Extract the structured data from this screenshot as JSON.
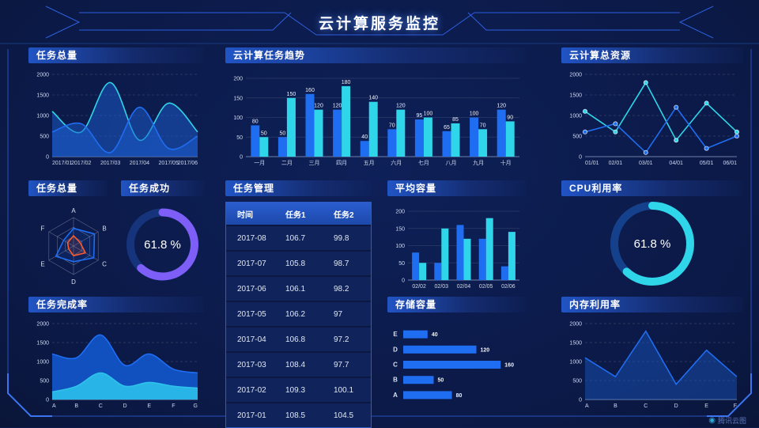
{
  "header": {
    "title": "云计算服务监控"
  },
  "brand": {
    "logo_text": "腾讯云图"
  },
  "panels": {
    "task_total_area": {
      "title": "任务总量"
    },
    "task_trend": {
      "title": "云计算任务趋势"
    },
    "total_resources": {
      "title": "云计算总资源"
    },
    "task_radar": {
      "title": "任务总量"
    },
    "task_success": {
      "title": "任务成功"
    },
    "task_manage": {
      "title": "任务管理"
    },
    "avg_capacity": {
      "title": "平均容量"
    },
    "cpu_usage": {
      "title": "CPU利用率"
    },
    "completion": {
      "title": "任务完成率"
    },
    "storage": {
      "title": "存储容量"
    },
    "memory": {
      "title": "内存利用率"
    }
  },
  "table": {
    "headers": [
      "时间",
      "任务1",
      "任务2"
    ],
    "rows": [
      [
        "2017-08",
        "106.7",
        "99.8"
      ],
      [
        "2017-07",
        "105.8",
        "98.7"
      ],
      [
        "2017-06",
        "106.1",
        "98.2"
      ],
      [
        "2017-05",
        "106.2",
        "97"
      ],
      [
        "2017-04",
        "106.8",
        "97.2"
      ],
      [
        "2017-03",
        "108.4",
        "97.7"
      ],
      [
        "2017-02",
        "109.3",
        "100.1"
      ],
      [
        "2017-01",
        "108.5",
        "104.5"
      ]
    ]
  },
  "colors": {
    "series_blue": "#1f6df0",
    "series_cyan": "#2fd5e8",
    "accent_purple": "#7d5ef6",
    "background": "#0c1b4c"
  },
  "chart_data": [
    {
      "id": "task_total_area",
      "type": "line",
      "title": "任务总量",
      "smooth": true,
      "markers": false,
      "categories": [
        "2017/01",
        "2017/02",
        "2017/03",
        "2017/04",
        "2017/05",
        "2017/06"
      ],
      "series": [
        {
          "name": "cyan-series",
          "color": "#2fd5e8",
          "fill": "rgba(27,94,210,0.5)",
          "values": [
            1100,
            600,
            1800,
            400,
            1300,
            600
          ]
        },
        {
          "name": "blue-series",
          "color": "#1f6df0",
          "fill": "rgba(27,94,210,0.5)",
          "values": [
            600,
            800,
            100,
            1200,
            200,
            500
          ]
        }
      ],
      "ylim": [
        0,
        2000
      ],
      "yticks": [
        0,
        500,
        1000,
        1500,
        2000
      ],
      "grid": "dashed",
      "legend": "none"
    },
    {
      "id": "task_trend",
      "type": "bar",
      "title": "云计算任务趋势",
      "value_labels": true,
      "categories": [
        "一月",
        "二月",
        "三月",
        "四月",
        "五月",
        "六月",
        "七月",
        "八月",
        "九月",
        "十月"
      ],
      "series": [
        {
          "name": "blue-series",
          "color": "#1f6df0",
          "values": [
            80,
            50,
            160,
            120,
            40,
            70,
            95,
            65,
            100,
            120
          ]
        },
        {
          "name": "cyan-series",
          "color": "#2fd5e8",
          "values": [
            50,
            150,
            120,
            180,
            140,
            120,
            100,
            85,
            70,
            90
          ]
        }
      ],
      "ylim": [
        0,
        200
      ],
      "yticks": [
        0,
        50,
        100,
        150,
        200
      ],
      "grid": "solid",
      "legend": "none"
    },
    {
      "id": "total_resources",
      "type": "line",
      "title": "云计算总资源",
      "smooth": false,
      "markers": true,
      "categories": [
        "01/01",
        "02/01",
        "03/01",
        "04/01",
        "05/01",
        "06/01"
      ],
      "series": [
        {
          "name": "cyan-series",
          "color": "#2fd5e8",
          "values": [
            1100,
            600,
            1800,
            400,
            1300,
            600
          ]
        },
        {
          "name": "blue-series",
          "color": "#1f6df0",
          "values": [
            600,
            800,
            100,
            1200,
            200,
            500
          ]
        }
      ],
      "ylim": [
        0,
        2000
      ],
      "yticks": [
        0,
        500,
        1000,
        1500,
        2000
      ],
      "grid": "dashed",
      "legend": "none"
    },
    {
      "id": "task_radar",
      "type": "radar",
      "title": "任务总量",
      "axes": [
        "A",
        "B",
        "C",
        "D",
        "E",
        "F"
      ],
      "max": 100,
      "series": [
        {
          "name": "blue-series",
          "color": "#1f6df0",
          "values": [
            62,
            85,
            82,
            55,
            72,
            40
          ]
        },
        {
          "name": "orange-series",
          "color": "#ff5a2a",
          "values": [
            36,
            26,
            48,
            34,
            20,
            24
          ]
        }
      ]
    },
    {
      "id": "task_success",
      "type": "donut",
      "title": "任务成功",
      "value": 61.8,
      "label": "61.8 %",
      "color": "#7d5ef6",
      "track": "#16347c"
    },
    {
      "id": "avg_capacity",
      "type": "bar",
      "title": "平均容量",
      "value_labels": false,
      "categories": [
        "02/02",
        "02/03",
        "02/04",
        "02/05",
        "02/06"
      ],
      "series": [
        {
          "name": "blue-series",
          "color": "#1f6df0",
          "values": [
            80,
            50,
            160,
            120,
            40
          ]
        },
        {
          "name": "cyan-series",
          "color": "#2fd5e8",
          "values": [
            50,
            150,
            120,
            180,
            140
          ]
        }
      ],
      "ylim": [
        0,
        200
      ],
      "yticks": [
        0,
        50,
        100,
        150,
        200
      ],
      "grid": "solid",
      "legend": "none"
    },
    {
      "id": "cpu_usage",
      "type": "donut",
      "title": "CPU利用率",
      "value": 61.8,
      "label": "61.8 %",
      "color": "#2fd5e8",
      "track": "#15418c"
    },
    {
      "id": "completion",
      "type": "line",
      "title": "任务完成率",
      "smooth": true,
      "markers": false,
      "categories": [
        "A",
        "B",
        "C",
        "D",
        "E",
        "F",
        "G"
      ],
      "series": [
        {
          "name": "blue-series",
          "color": "#1e6ef5",
          "fill": "rgba(18,86,204,0.9)",
          "values": [
            1200,
            1100,
            1700,
            900,
            1200,
            800,
            700
          ]
        },
        {
          "name": "cyan-series",
          "color": "#2ec3ea",
          "fill": "rgba(42,185,232,0.95)",
          "values": [
            200,
            350,
            700,
            350,
            450,
            350,
            300
          ]
        }
      ],
      "ylim": [
        0,
        2000
      ],
      "yticks": [
        0,
        500,
        1000,
        1500,
        2000
      ],
      "grid": "dashed",
      "legend": "none"
    },
    {
      "id": "storage",
      "type": "hbar",
      "title": "存储容量",
      "categories": [
        "E",
        "D",
        "C",
        "B",
        "A"
      ],
      "values": [
        40,
        120,
        160,
        50,
        80
      ],
      "color": "#1f6df0",
      "xmax": 170
    },
    {
      "id": "memory",
      "type": "line",
      "title": "内存利用率",
      "smooth": false,
      "markers": false,
      "categories": [
        "A",
        "B",
        "C",
        "D",
        "E",
        "F"
      ],
      "series": [
        {
          "name": "blue-series",
          "color": "#1f6df0",
          "fill": "rgba(27,94,210,0.4)",
          "values": [
            1100,
            600,
            1800,
            400,
            1300,
            600
          ]
        }
      ],
      "ylim": [
        0,
        2000
      ],
      "yticks": [
        0,
        500,
        1000,
        1500,
        2000
      ],
      "grid": "dashed",
      "legend": "none"
    }
  ]
}
